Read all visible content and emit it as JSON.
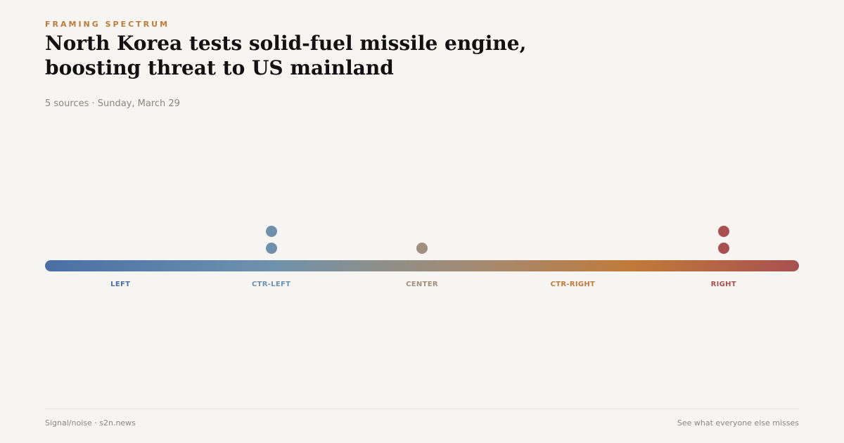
{
  "header": {
    "kicker": "FRAMING SPECTRUM",
    "title": "North Korea tests solid-fuel missile engine, boosting threat to US mainland",
    "meta": "5 sources · Sunday, March 29"
  },
  "spectrum": {
    "categories": [
      {
        "label": "LEFT",
        "color": "#4a6fa5",
        "count": 0
      },
      {
        "label": "CTR-LEFT",
        "color": "#6e92ad",
        "count": 2
      },
      {
        "label": "CENTER",
        "color": "#a09080",
        "count": 1
      },
      {
        "label": "CTR-RIGHT",
        "color": "#c07a3a",
        "count": 0
      },
      {
        "label": "RIGHT",
        "color": "#a85050",
        "count": 2
      }
    ]
  },
  "footer": {
    "left": "Signal/noise · s2n.news",
    "right": "See what everyone else misses"
  }
}
